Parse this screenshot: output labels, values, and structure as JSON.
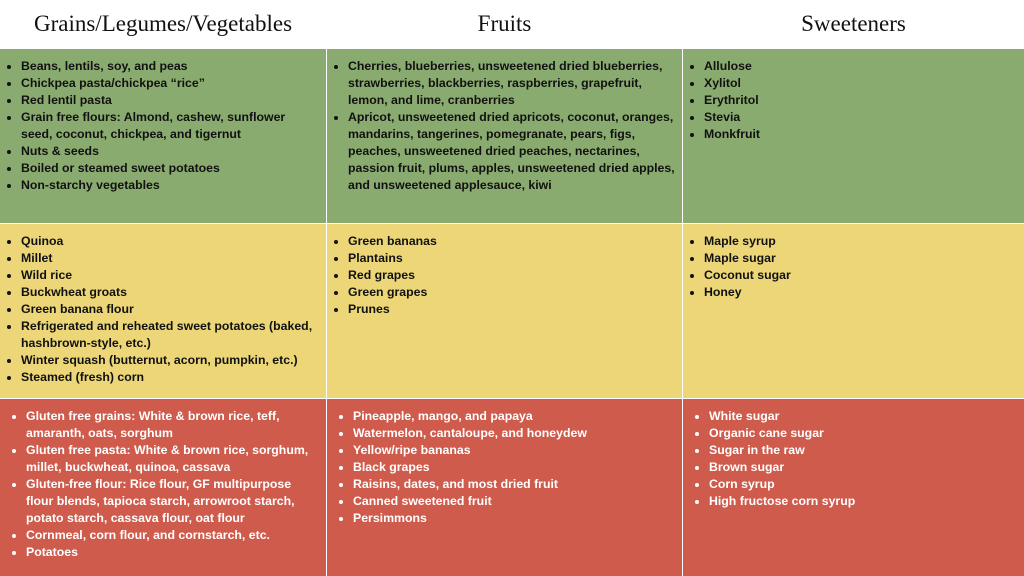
{
  "headers": [
    "Grains/Legumes/Vegetables",
    "Fruits",
    "Sweeteners"
  ],
  "rows": [
    [
      [
        "Beans, lentils, soy, and peas",
        "Chickpea pasta/chickpea “rice”",
        "Red lentil pasta",
        "Grain free flours: Almond, cashew, sunflower seed, coconut, chickpea, and tigernut",
        "Nuts & seeds",
        "Boiled or steamed sweet potatoes",
        "Non-starchy vegetables"
      ],
      [
        "Cherries, blueberries, unsweetened dried blueberries, strawberries, blackberries, raspberries, grapefruit, lemon, and lime, cranberries",
        "Apricot, unsweetened dried apricots, coconut, oranges, mandarins, tangerines, pomegranate, pears, figs, peaches, unsweetened dried peaches, nectarines, passion fruit, plums, apples, unsweetened dried apples, and unsweetened applesauce, kiwi"
      ],
      [
        "Allulose",
        "Xylitol",
        "Erythritol",
        "Stevia",
        "Monkfruit"
      ]
    ],
    [
      [
        "Quinoa",
        "Millet",
        "Wild rice",
        "Buckwheat groats",
        "Green banana flour",
        "Refrigerated and reheated sweet potatoes (baked, hashbrown-style, etc.)",
        "Winter squash (butternut, acorn, pumpkin, etc.)",
        "Steamed (fresh) corn"
      ],
      [
        "Green bananas",
        "Plantains",
        "Red grapes",
        "Green grapes",
        "Prunes"
      ],
      [
        "Maple syrup",
        "Maple sugar",
        "Coconut sugar",
        "Honey"
      ]
    ],
    [
      [
        "Gluten free grains: White & brown rice, teff, amaranth, oats, sorghum",
        "Gluten free pasta: White & brown rice, sorghum, millet, buckwheat, quinoa, cassava",
        "Gluten-free flour: Rice flour, GF multipurpose flour blends, tapioca starch, arrowroot starch, potato starch, cassava flour, oat flour",
        "Cornmeal, corn flour, and cornstarch, etc.",
        "Potatoes"
      ],
      [
        "Pineapple, mango, and papaya",
        "Watermelon, cantaloupe, and honeydew",
        "Yellow/ripe bananas",
        "Black grapes",
        "Raisins, dates, and most dried fruit",
        "Canned sweetened fruit",
        "Persimmons"
      ],
      [
        "White sugar",
        "Organic cane sugar",
        "Sugar in the raw",
        "Brown sugar",
        "Corn syrup",
        "High fructose corn syrup"
      ]
    ]
  ]
}
